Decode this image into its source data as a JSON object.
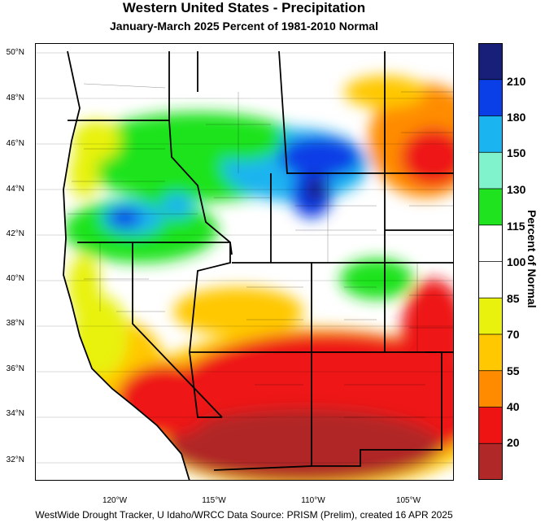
{
  "title": "Western United States - Precipitation",
  "subtitle": "January-March 2025  Percent of 1981-2010 Normal",
  "footer": "WestWide Drought Tracker, U Idaho/WRCC Data Source: PRISM (Prelim), created 16 APR 2025",
  "colorbar": {
    "title": "Percent of Normal",
    "labels": [
      "210",
      "180",
      "150",
      "130",
      "115",
      "100",
      "85",
      "70",
      "55",
      "40",
      "20"
    ],
    "colors": [
      "#171f78",
      "#0a3ee6",
      "#1ab4f0",
      "#80f2cc",
      "#1fe31f",
      "#ffffff",
      "#ffffff",
      "#e8f20d",
      "#ffc800",
      "#ff8c00",
      "#ee1414",
      "#b02828"
    ]
  },
  "axes": {
    "lat_labels": [
      "50°N",
      "48°N",
      "46°N",
      "44°N",
      "42°N",
      "40°N",
      "38°N",
      "36°N",
      "34°N",
      "32°N"
    ],
    "lon_labels": [
      "120°W",
      "115°W",
      "110°W",
      "105°W"
    ]
  }
}
